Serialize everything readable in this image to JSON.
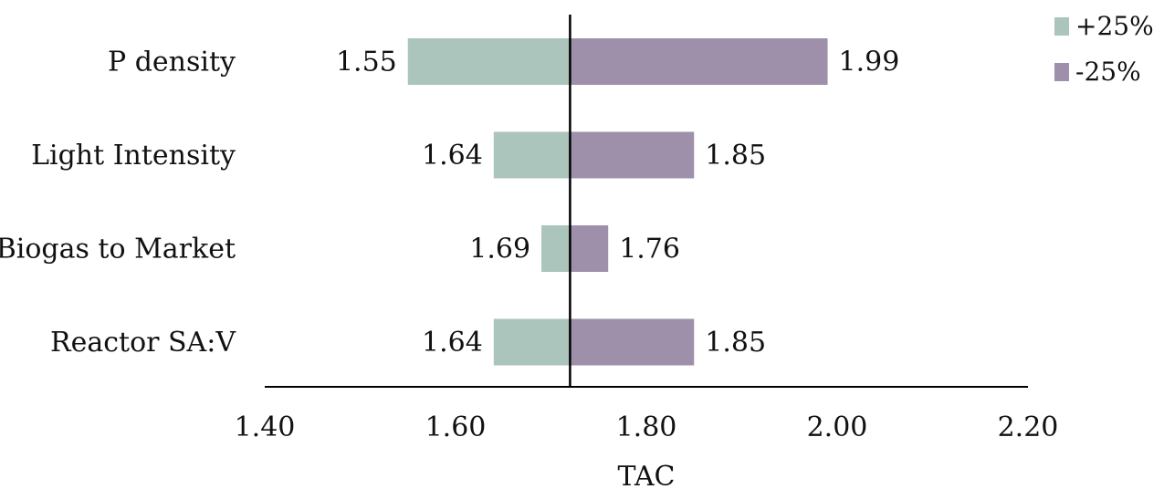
{
  "chart_data": {
    "type": "bar",
    "orientation": "horizontal",
    "style": "tornado",
    "categories": [
      "P density",
      "Light Intensity",
      "Biogas to Market",
      "Reactor SA:V"
    ],
    "baseline": 1.72,
    "series": [
      {
        "name": "+25%",
        "color": "#abc4bc",
        "values": [
          1.55,
          1.64,
          1.69,
          1.64
        ]
      },
      {
        "name": "-25%",
        "color": "#9e90ab",
        "values": [
          1.99,
          1.85,
          1.76,
          1.85
        ]
      }
    ],
    "value_labels": {
      "+25%": [
        "1.55",
        "1.64",
        "1.69",
        "1.64"
      ],
      "-25%": [
        "1.99",
        "1.85",
        "1.76",
        "1.85"
      ]
    },
    "xlabel": "TAC",
    "xlim": [
      1.4,
      2.2
    ],
    "xticks": [
      "1.40",
      "1.60",
      "1.80",
      "2.00",
      "2.20"
    ],
    "xtick_values": [
      1.4,
      1.6,
      1.8,
      2.0,
      2.2
    ],
    "legend_position": "top-right",
    "grid": false
  }
}
